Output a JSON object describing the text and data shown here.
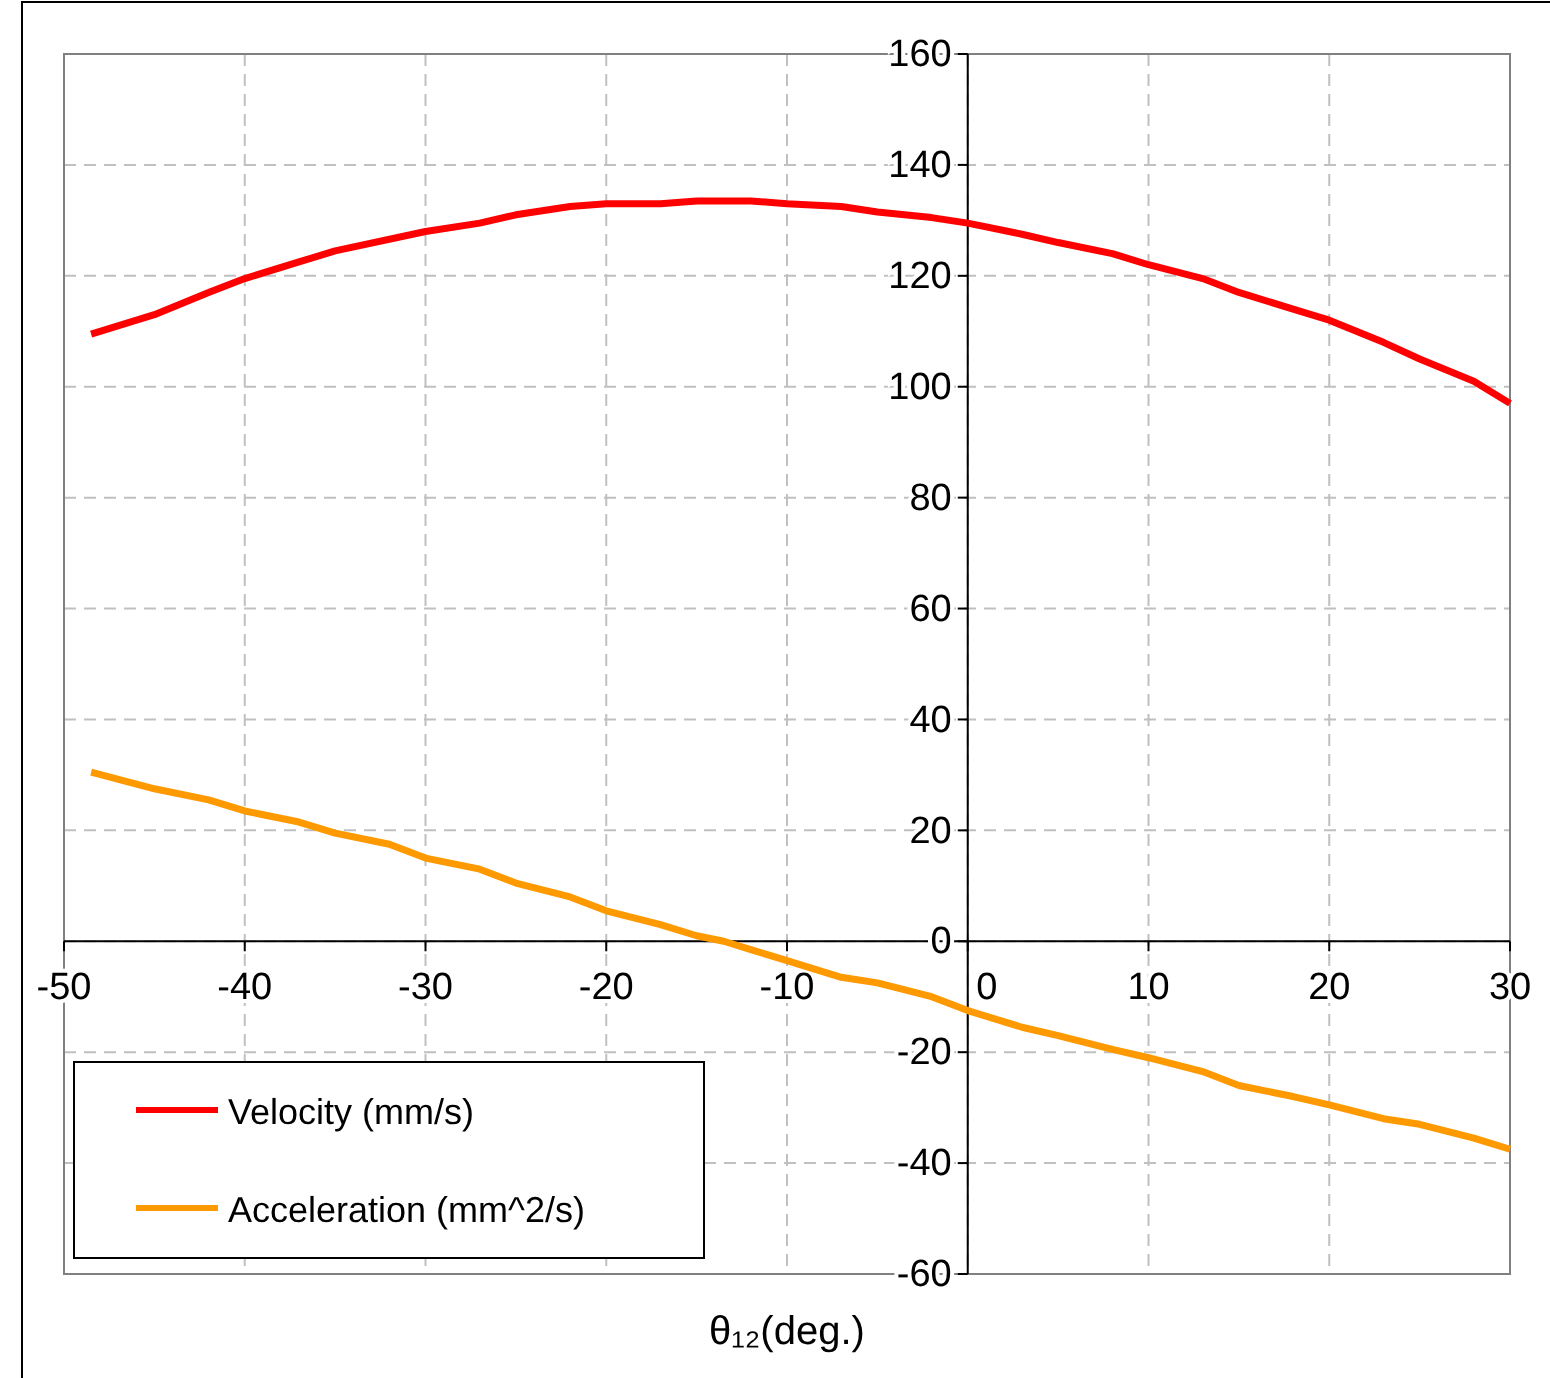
{
  "chart_data": {
    "type": "line",
    "xlabel": "θ₁₂(deg.)",
    "xlim": [
      -50,
      30
    ],
    "xticks": [
      -50,
      -40,
      -30,
      -20,
      -10,
      0,
      10,
      20,
      30
    ],
    "ylim": [
      -60,
      160
    ],
    "yticks": [
      -60,
      -40,
      -20,
      0,
      20,
      40,
      60,
      80,
      100,
      120,
      140,
      160
    ],
    "grid": true,
    "legend": "bottom left",
    "line_style": "solid",
    "marker": "none",
    "series": [
      {
        "name": "Velocity (mm/s)",
        "color": "#ff0000",
        "x": [
          -48.5,
          -45,
          -42,
          -40,
          -37,
          -35,
          -30,
          -27,
          -25,
          -22,
          -20,
          -17,
          -15,
          -12,
          -10,
          -7,
          -5,
          -2,
          0,
          3,
          5,
          8,
          10,
          13,
          15,
          18,
          20,
          23,
          25,
          28,
          30
        ],
        "values": [
          109.5,
          113,
          117,
          119.5,
          122.5,
          124.5,
          128,
          129.5,
          131,
          132.5,
          133,
          133,
          133.5,
          133.5,
          133,
          132.5,
          131.5,
          130.5,
          129.5,
          127.5,
          126,
          124,
          122,
          119.5,
          117,
          114,
          112,
          108,
          105,
          101,
          97
        ]
      },
      {
        "name": "Acceleration (mm^2/s)",
        "color": "#ff9900",
        "x": [
          -48.5,
          -45,
          -42,
          -40,
          -37,
          -35,
          -32,
          -30,
          -27,
          -25,
          -22,
          -20,
          -17,
          -15,
          -13.5,
          -12,
          -10,
          -7,
          -5,
          -2,
          0,
          3,
          5,
          8,
          10,
          13,
          15,
          18,
          20,
          23,
          25,
          28,
          30
        ],
        "values": [
          30.5,
          27.5,
          25.5,
          23.5,
          21.5,
          19.5,
          17.5,
          15,
          13,
          10.5,
          8,
          5.5,
          3,
          1,
          0,
          -1.5,
          -3.5,
          -6.5,
          -7.5,
          -10,
          -12.5,
          -15.5,
          -17,
          -19.5,
          -21,
          -23.5,
          -26,
          -28,
          -29.5,
          -32,
          -33,
          -35.5,
          -37.5
        ]
      }
    ]
  }
}
